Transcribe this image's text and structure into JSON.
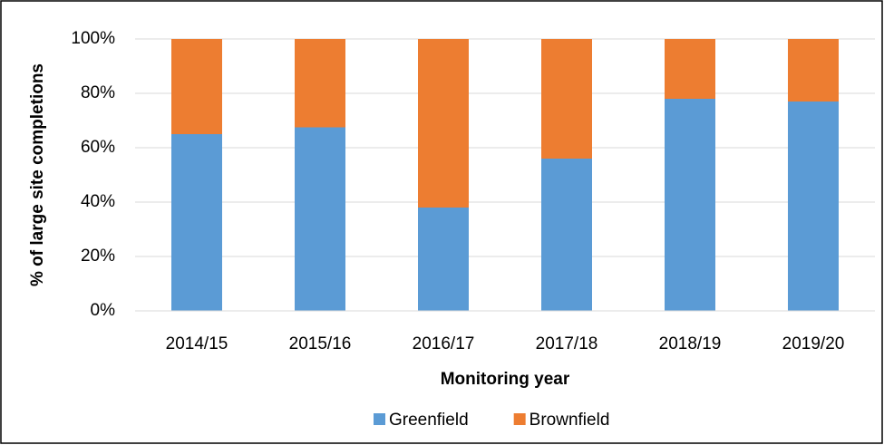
{
  "chart_data": {
    "type": "stacked_bar",
    "categories": [
      "2014/15",
      "2015/16",
      "2016/17",
      "2017/18",
      "2018/19",
      "2019/20"
    ],
    "series": [
      {
        "name": "Greenfield",
        "color": "#5b9bd5",
        "values": [
          65,
          67.5,
          38,
          56,
          78,
          77
        ]
      },
      {
        "name": "Brownfield",
        "color": "#ed7d31",
        "values": [
          35,
          32.5,
          62,
          44,
          22,
          23
        ]
      }
    ],
    "x_label": "Monitoring year",
    "y_label": "% of large site completions",
    "ylim": [
      0,
      100
    ],
    "yticks": [
      {
        "value": 0,
        "label": "0%"
      },
      {
        "value": 20,
        "label": "20%"
      },
      {
        "value": 40,
        "label": "40%"
      },
      {
        "value": 60,
        "label": "60%"
      },
      {
        "value": 80,
        "label": "80%"
      },
      {
        "value": 100,
        "label": "100%"
      }
    ],
    "grid": true,
    "legend": "bottom"
  }
}
